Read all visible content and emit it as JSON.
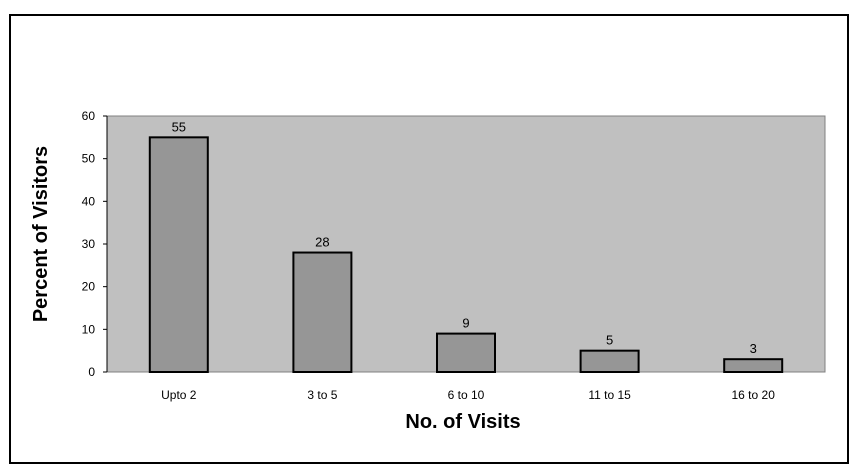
{
  "chart_data": {
    "type": "bar",
    "title": "",
    "xlabel": "No. of Visits",
    "ylabel": "Percent of Visitors",
    "categories": [
      "Upto 2",
      "3 to 5",
      "6 to 10",
      "11 to 15",
      "16 to 20"
    ],
    "values": [
      55,
      28,
      9,
      5,
      3
    ],
    "ylim": [
      0,
      60
    ],
    "yticks": [
      0,
      10,
      20,
      30,
      40,
      50,
      60
    ],
    "grid": false,
    "legend": "none",
    "colors": {
      "plot_background": "#c0c0c0",
      "bar_fill": "#969696",
      "bar_stroke": "#000000",
      "frame": "#000000"
    }
  }
}
